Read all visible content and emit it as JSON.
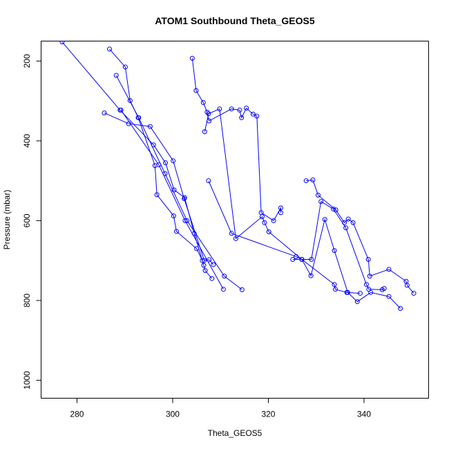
{
  "chart_data": {
    "type": "scatter",
    "title": "ATOM1 Southbound Theta_GEOS5",
    "xlabel": "Theta_GEOS5",
    "ylabel": "Pressure (mbar)",
    "xlim": [
      272.5,
      353.5
    ],
    "ylim": [
      1045,
      150
    ],
    "y_reversed": true,
    "x_ticks": [
      280,
      300,
      320,
      340
    ],
    "y_ticks": [
      200,
      400,
      600,
      800,
      1000
    ],
    "grid": false,
    "legend": "none",
    "color": "#0000ff",
    "point_style": "open-circle",
    "series": [
      {
        "values": [
          [
            276.9,
            152
          ],
          [
            289,
            323
          ],
          [
            296,
            410
          ],
          [
            298.5,
            455
          ],
          [
            300.3,
            523
          ],
          [
            302.5,
            542
          ],
          [
            304.5,
            632
          ],
          [
            306.5,
            712
          ],
          [
            306.8,
            725
          ],
          [
            308.2,
            745
          ]
        ]
      },
      {
        "values": [
          [
            285.7,
            330
          ],
          [
            290.8,
            357
          ],
          [
            295.3,
            364
          ],
          [
            300.1,
            450
          ],
          [
            302.4,
            545
          ],
          [
            306.6,
            700
          ],
          [
            307.6,
            698
          ],
          [
            308.5,
            710
          ]
        ]
      },
      {
        "values": [
          [
            286.8,
            170
          ],
          [
            290.1,
            215
          ],
          [
            291.1,
            299
          ],
          [
            292.8,
            342
          ],
          [
            296.3,
            462
          ],
          [
            296.7,
            535
          ],
          [
            300.2,
            588
          ],
          [
            300.8,
            627
          ],
          [
            305.0,
            670
          ],
          [
            306.2,
            700
          ]
        ]
      },
      {
        "values": [
          [
            288.2,
            236
          ],
          [
            292.9,
            342
          ],
          [
            298.4,
            482
          ],
          [
            303.0,
            600
          ],
          [
            310.8,
            739
          ],
          [
            314.5,
            773
          ]
        ]
      },
      {
        "values": [
          [
            289.2,
            323
          ],
          [
            297.1,
            460
          ],
          [
            302.6,
            600
          ],
          [
            310.6,
            772
          ]
        ]
      },
      {
        "values": [
          [
            304.1,
            193
          ],
          [
            304.9,
            274
          ],
          [
            306.4,
            304
          ],
          [
            307.2,
            328
          ],
          [
            307.6,
            350
          ],
          [
            312.3,
            320
          ],
          [
            314.0,
            323
          ],
          [
            314.4,
            342
          ],
          [
            315.4,
            318
          ],
          [
            316.8,
            333
          ],
          [
            317.6,
            338
          ],
          [
            318.5,
            580
          ],
          [
            321.1,
            600
          ],
          [
            322.6,
            568
          ],
          [
            322.6,
            580
          ]
        ]
      },
      {
        "values": [
          [
            306.7,
            377
          ],
          [
            307.5,
            332
          ],
          [
            309.8,
            320
          ],
          [
            313.2,
            645
          ],
          [
            318.7,
            590
          ],
          [
            319.2,
            605
          ],
          [
            320.1,
            628
          ],
          [
            327.0,
            697
          ],
          [
            328.9,
            738
          ],
          [
            331.8,
            597
          ],
          [
            333.8,
            675
          ],
          [
            336.6,
            780
          ],
          [
            338.6,
            803
          ],
          [
            341.4,
            780
          ],
          [
            345.2,
            790
          ],
          [
            347.6,
            820
          ]
        ]
      },
      {
        "values": [
          [
            307.5,
            500
          ],
          [
            312.3,
            632
          ],
          [
            325.8,
            690
          ],
          [
            327.0,
            697
          ],
          [
            329.0,
            697
          ],
          [
            331.0,
            552
          ],
          [
            333.6,
            571
          ],
          [
            336.2,
            618
          ],
          [
            340.5,
            760
          ],
          [
            341.0,
            772
          ],
          [
            343.8,
            773
          ],
          [
            344.2,
            770
          ]
        ]
      },
      {
        "values": [
          [
            327.9,
            500
          ],
          [
            329.3,
            498
          ],
          [
            330.4,
            536
          ],
          [
            334.1,
            573
          ],
          [
            335.9,
            605
          ],
          [
            336.7,
            596
          ],
          [
            337.7,
            605
          ],
          [
            340.9,
            697
          ],
          [
            341.2,
            739
          ],
          [
            345.2,
            722
          ],
          [
            348.8,
            752
          ],
          [
            349.0,
            762
          ],
          [
            350.4,
            782
          ]
        ]
      },
      {
        "values": [
          [
            325.1,
            697
          ],
          [
            327.0,
            697
          ],
          [
            333.8,
            760
          ],
          [
            334.0,
            772
          ],
          [
            336.4,
            780
          ],
          [
            339.2,
            782
          ]
        ]
      }
    ]
  }
}
